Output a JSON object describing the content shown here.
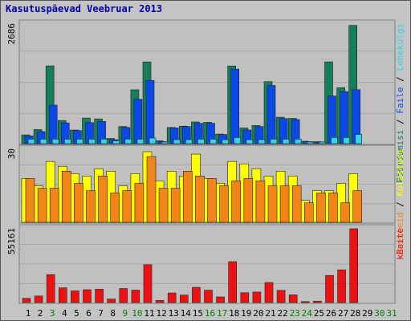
{
  "chart_title": "Kasutuspäevad Veebruar 2013",
  "chart_data": [
    {
      "type": "bar",
      "panel": "top",
      "ymax_label": "2686",
      "ylim": [
        0,
        2686
      ],
      "categories": [
        "1",
        "2",
        "3",
        "4",
        "5",
        "6",
        "7",
        "8",
        "9",
        "10",
        "11",
        "12",
        "13",
        "14",
        "15",
        "16",
        "17",
        "18",
        "19",
        "20",
        "21",
        "22",
        "23",
        "24",
        "25",
        "26",
        "27",
        "28",
        "29",
        "30",
        "31"
      ],
      "series": [
        {
          "name": "Pöördumisi",
          "color": "#157f57",
          "values": [
            197,
            318,
            1747,
            520,
            306,
            575,
            556,
            117,
            385,
            1209,
            1836,
            65,
            364,
            393,
            487,
            479,
            215,
            1745,
            353,
            407,
            1393,
            594,
            568,
            54,
            45,
            1837,
            1257,
            2655,
            0,
            0,
            0
          ]
        },
        {
          "name": "Faile",
          "color": "#0b48e8",
          "values": [
            175,
            272,
            865,
            467,
            295,
            472,
            499,
            90,
            364,
            996,
            1421,
            45,
            354,
            384,
            457,
            458,
            206,
            1675,
            307,
            384,
            1306,
            564,
            542,
            45,
            36,
            1072,
            1170,
            1211,
            0,
            0,
            0
          ]
        },
        {
          "name": "Lehekülgi",
          "color": "#33d2f2",
          "values": [
            102,
            102,
            102,
            102,
            102,
            102,
            102,
            63,
            102,
            102,
            127,
            36,
            90,
            90,
            102,
            102,
            90,
            138,
            90,
            91,
            102,
            102,
            102,
            36,
            36,
            139,
            138,
            207,
            0,
            0,
            0
          ]
        }
      ],
      "legend": [
        "Pöördumisi",
        "Faile",
        "Lehekülgi"
      ]
    },
    {
      "type": "bar",
      "panel": "middle",
      "ymax_label": "30",
      "ylim": [
        0,
        30
      ],
      "categories": [
        "1",
        "2",
        "3",
        "4",
        "5",
        "6",
        "7",
        "8",
        "9",
        "10",
        "11",
        "12",
        "13",
        "14",
        "15",
        "16",
        "17",
        "18",
        "19",
        "20",
        "21",
        "22",
        "23",
        "24",
        "25",
        "26",
        "27",
        "28",
        "29",
        "30",
        "31"
      ],
      "series": [
        {
          "name": "Külastusi",
          "color": "#ffff00",
          "values": [
            18,
            15,
            25,
            23,
            20,
            19,
            22,
            21,
            15,
            20,
            29,
            17,
            21,
            19,
            28,
            18,
            16,
            25,
            24,
            22,
            19,
            21,
            19,
            9,
            13,
            13,
            16,
            20,
            0,
            0,
            0
          ]
        },
        {
          "name": "Arvuteid",
          "color": "#f28518",
          "values": [
            18,
            14,
            14,
            21,
            16,
            13,
            19,
            12,
            13,
            16,
            27,
            14,
            14,
            21,
            19,
            18,
            15,
            17,
            18,
            17,
            15,
            15,
            15,
            8,
            12,
            12,
            8,
            13,
            0,
            0,
            0
          ]
        }
      ],
      "legend": [
        "Arvuteid",
        "Külastusi"
      ]
    },
    {
      "type": "bar",
      "panel": "bottom",
      "ymax_label": "55161",
      "ylim": [
        0,
        55161
      ],
      "categories": [
        "1",
        "2",
        "3",
        "4",
        "5",
        "6",
        "7",
        "8",
        "9",
        "10",
        "11",
        "12",
        "13",
        "14",
        "15",
        "16",
        "17",
        "18",
        "19",
        "20",
        "21",
        "22",
        "23",
        "24",
        "25",
        "26",
        "27",
        "28",
        "29",
        "30",
        "31"
      ],
      "series": [
        {
          "name": "kBaite",
          "color": "#ee1111",
          "values": [
            3140,
            4890,
            20870,
            11020,
            8720,
            9590,
            9940,
            2620,
            10470,
            9250,
            28280,
            1570,
            7150,
            5580,
            11340,
            9240,
            4190,
            30530,
            7320,
            7850,
            14960,
            9070,
            5760,
            700,
            950,
            20240,
            24440,
            55161,
            0,
            0,
            0
          ]
        }
      ],
      "legend": [
        "kBaite"
      ]
    }
  ],
  "x_labels": [
    {
      "text": "1",
      "color": "#000000"
    },
    {
      "text": "2",
      "color": "#000000"
    },
    {
      "text": "3",
      "color": "#008000"
    },
    {
      "text": "4",
      "color": "#000000"
    },
    {
      "text": "5",
      "color": "#000000"
    },
    {
      "text": "6",
      "color": "#000000"
    },
    {
      "text": "7",
      "color": "#000000"
    },
    {
      "text": "8",
      "color": "#000000"
    },
    {
      "text": "9",
      "color": "#008000"
    },
    {
      "text": "10",
      "color": "#008000"
    },
    {
      "text": "11",
      "color": "#000000"
    },
    {
      "text": "12",
      "color": "#000000"
    },
    {
      "text": "13",
      "color": "#000000"
    },
    {
      "text": "14",
      "color": "#000000"
    },
    {
      "text": "15",
      "color": "#000000"
    },
    {
      "text": "16",
      "color": "#008000"
    },
    {
      "text": "17",
      "color": "#008000"
    },
    {
      "text": "18",
      "color": "#000000"
    },
    {
      "text": "19",
      "color": "#000000"
    },
    {
      "text": "20",
      "color": "#000000"
    },
    {
      "text": "21",
      "color": "#000000"
    },
    {
      "text": "22",
      "color": "#000000"
    },
    {
      "text": "23",
      "color": "#008000"
    },
    {
      "text": "24",
      "color": "#008000"
    },
    {
      "text": "25",
      "color": "#000000"
    },
    {
      "text": "26",
      "color": "#000000"
    },
    {
      "text": "27",
      "color": "#000000"
    },
    {
      "text": "28",
      "color": "#000000"
    },
    {
      "text": "29",
      "color": "#000000"
    },
    {
      "text": "30",
      "color": "#008000"
    },
    {
      "text": "31",
      "color": "#008000"
    }
  ],
  "legend_separator": " / "
}
